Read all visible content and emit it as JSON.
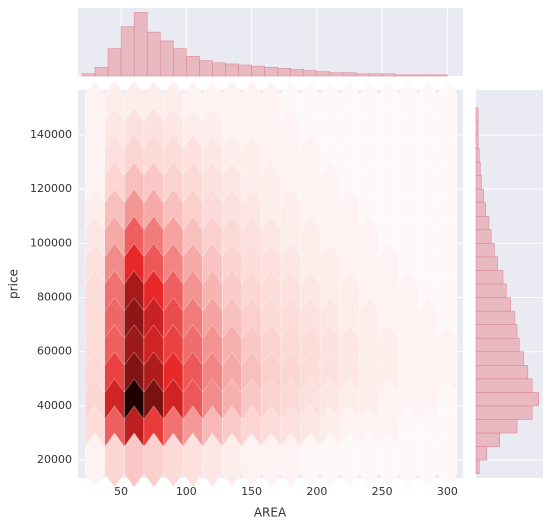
{
  "chart_data": {
    "type": "hexbin",
    "xlabel": "AREA",
    "ylabel": "price",
    "xlim": [
      17,
      312
    ],
    "ylim": [
      13400,
      156600
    ],
    "xticks": [
      50,
      100,
      150,
      200,
      250,
      300
    ],
    "yticks": [
      20000,
      40000,
      60000,
      80000,
      100000,
      120000,
      140000
    ],
    "grid": true,
    "color": "#cc1010",
    "x_centers": [
      30,
      45,
      60,
      75,
      90,
      105,
      120,
      135,
      150,
      165,
      180,
      195,
      210,
      225,
      240,
      255,
      270,
      285,
      300
    ],
    "y_centers": [
      150000,
      140000,
      130000,
      120000,
      110000,
      100000,
      90000,
      80000,
      70000,
      60000,
      50000,
      40000,
      30000,
      20000
    ],
    "counts": [
      [
        2,
        3,
        3,
        3,
        3,
        2,
        2,
        2,
        2,
        2,
        1,
        1,
        1,
        1,
        1,
        1,
        1,
        1,
        1
      ],
      [
        2,
        4,
        5,
        5,
        4,
        3,
        3,
        2,
        2,
        2,
        2,
        1,
        1,
        1,
        1,
        1,
        1,
        1,
        1
      ],
      [
        2,
        5,
        8,
        7,
        6,
        5,
        4,
        3,
        3,
        2,
        2,
        2,
        1,
        1,
        1,
        1,
        1,
        1,
        1
      ],
      [
        2,
        8,
        14,
        12,
        9,
        7,
        5,
        4,
        3,
        3,
        2,
        2,
        2,
        1,
        1,
        1,
        1,
        1,
        1
      ],
      [
        3,
        14,
        25,
        20,
        14,
        10,
        7,
        5,
        4,
        3,
        3,
        2,
        2,
        2,
        1,
        1,
        1,
        1,
        1
      ],
      [
        4,
        20,
        40,
        32,
        22,
        14,
        10,
        7,
        5,
        4,
        3,
        3,
        2,
        2,
        2,
        1,
        1,
        1,
        1
      ],
      [
        5,
        28,
        55,
        42,
        30,
        20,
        13,
        9,
        6,
        5,
        4,
        3,
        3,
        2,
        2,
        2,
        1,
        1,
        1
      ],
      [
        6,
        35,
        70,
        55,
        40,
        26,
        17,
        11,
        8,
        6,
        5,
        4,
        3,
        3,
        2,
        2,
        2,
        1,
        1
      ],
      [
        6,
        38,
        75,
        62,
        45,
        32,
        22,
        14,
        10,
        7,
        6,
        5,
        4,
        3,
        3,
        2,
        2,
        2,
        1
      ],
      [
        6,
        40,
        72,
        60,
        48,
        36,
        26,
        18,
        12,
        9,
        7,
        6,
        5,
        4,
        3,
        3,
        2,
        2,
        2
      ],
      [
        7,
        48,
        78,
        68,
        55,
        42,
        30,
        20,
        14,
        10,
        8,
        6,
        5,
        4,
        3,
        3,
        2,
        2,
        2
      ],
      [
        8,
        60,
        100,
        80,
        60,
        42,
        28,
        18,
        12,
        9,
        7,
        5,
        4,
        3,
        3,
        2,
        2,
        2,
        1
      ],
      [
        6,
        40,
        65,
        50,
        35,
        24,
        16,
        11,
        8,
        6,
        5,
        4,
        3,
        2,
        2,
        2,
        1,
        1,
        1
      ],
      [
        2,
        8,
        12,
        10,
        7,
        5,
        4,
        3,
        2,
        2,
        2,
        1,
        1,
        1,
        1,
        1,
        1,
        1,
        1
      ]
    ],
    "marginal_x": {
      "type": "histogram",
      "color": "#e8a4ae",
      "ylim": [
        0,
        62
      ],
      "bins": [
        20,
        30,
        40,
        50,
        60,
        70,
        80,
        90,
        100,
        110,
        120,
        130,
        140,
        150,
        160,
        170,
        180,
        190,
        200,
        210,
        220,
        230,
        240,
        250,
        260,
        270,
        280,
        290,
        300
      ],
      "counts": [
        2,
        8,
        25,
        45,
        58,
        40,
        32,
        25,
        18,
        14,
        12,
        11,
        10,
        9,
        8,
        7,
        6,
        5,
        4,
        3,
        3,
        2,
        2,
        2,
        1,
        1,
        1,
        1
      ]
    },
    "marginal_y": {
      "type": "histogram",
      "color": "#e8a4ae",
      "xlim": [
        0,
        62
      ],
      "bins": [
        15000,
        20000,
        25000,
        30000,
        35000,
        40000,
        45000,
        50000,
        55000,
        60000,
        65000,
        70000,
        75000,
        80000,
        85000,
        90000,
        95000,
        100000,
        105000,
        110000,
        115000,
        120000,
        125000,
        130000,
        135000,
        140000,
        145000,
        150000
      ],
      "counts": [
        3,
        10,
        22,
        38,
        52,
        58,
        52,
        48,
        44,
        40,
        38,
        36,
        32,
        28,
        25,
        20,
        17,
        14,
        12,
        9,
        7,
        5,
        4,
        3,
        2,
        2,
        2
      ]
    }
  }
}
